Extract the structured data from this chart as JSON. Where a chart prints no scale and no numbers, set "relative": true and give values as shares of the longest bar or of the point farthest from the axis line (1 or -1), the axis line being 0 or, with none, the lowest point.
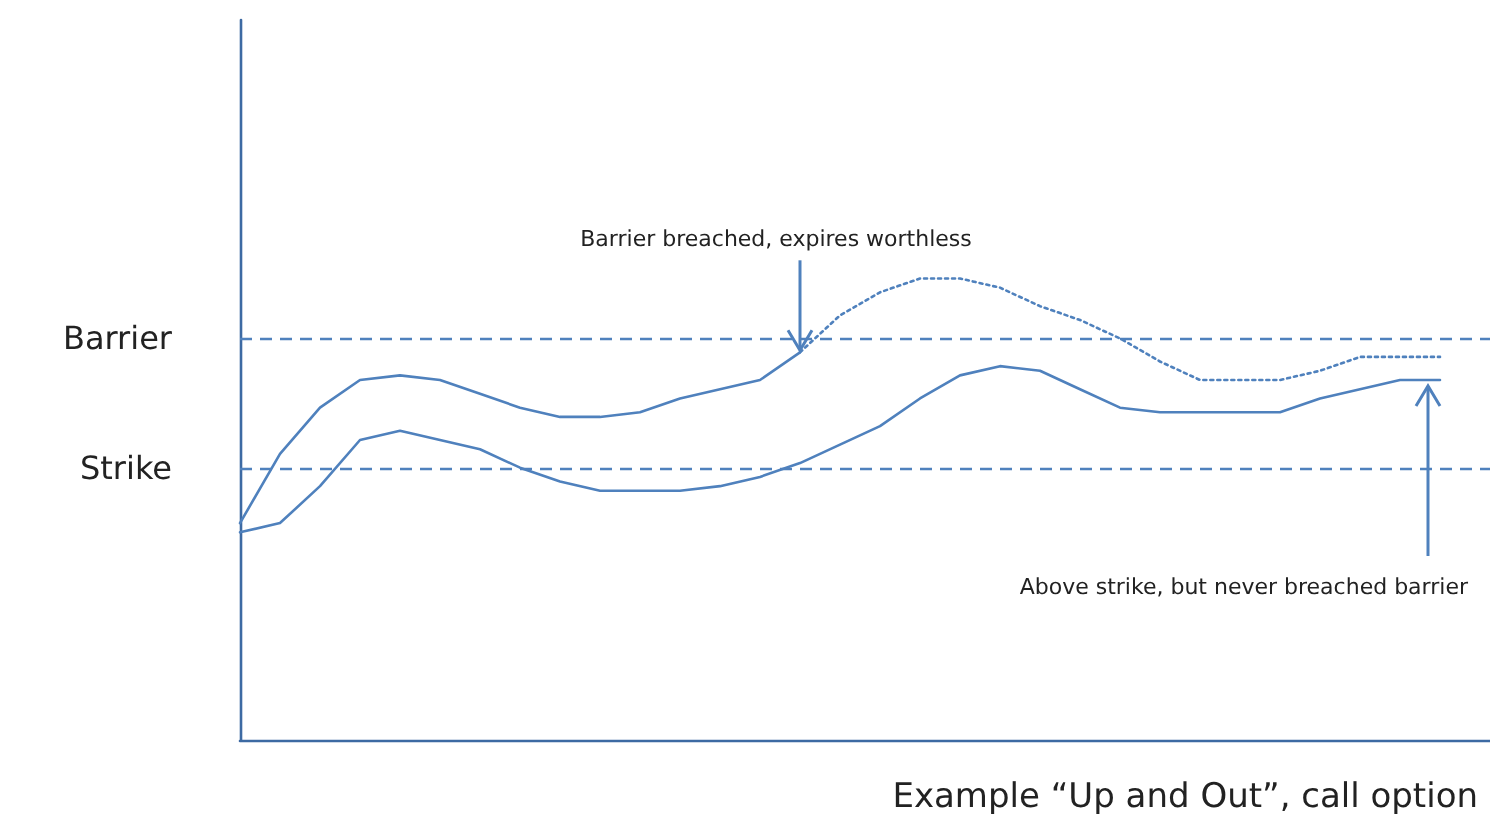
{
  "chart_data": {
    "type": "line",
    "relative": true,
    "categories": [
      null,
      null,
      null,
      null,
      null,
      null,
      null,
      null,
      null,
      null,
      null,
      null,
      null,
      null,
      null,
      null,
      null,
      null,
      null,
      null,
      null,
      null,
      null,
      null,
      null,
      null,
      null,
      null,
      null,
      null,
      null
    ],
    "series": [
      {
        "color": "#4f81bd",
        "line_style": "solid",
        "values": [
          0.47,
          0.62,
          0.72,
          0.78,
          0.79,
          0.78,
          0.75,
          0.72,
          0.7,
          0.7,
          0.71,
          0.74,
          0.76,
          0.78,
          0.84,
          null,
          null,
          null,
          null,
          null,
          null,
          null,
          null,
          null,
          null,
          null,
          null,
          null,
          null,
          null,
          null
        ]
      },
      {
        "color": "#4f81bd",
        "line_style": "dotted",
        "values": [
          null,
          null,
          null,
          null,
          null,
          null,
          null,
          null,
          null,
          null,
          null,
          null,
          null,
          null,
          0.84,
          0.92,
          0.97,
          1,
          1,
          0.98,
          0.94,
          0.91,
          0.87,
          0.82,
          0.78,
          0.78,
          0.78,
          0.8,
          0.83,
          0.83,
          0.83
        ]
      },
      {
        "color": "#4f81bd",
        "line_style": "solid",
        "values": [
          0.45,
          0.47,
          0.55,
          0.65,
          0.67,
          0.65,
          0.63,
          0.59,
          0.56,
          0.54,
          0.54,
          0.54,
          0.55,
          0.57,
          0.6,
          0.64,
          0.68,
          0.74,
          0.79,
          0.81,
          0.8,
          0.76,
          0.72,
          0.71,
          0.71,
          0.71,
          0.71,
          0.74,
          0.76,
          0.78,
          0.78
        ]
      }
    ],
    "ref_lines": [
      {
        "axis": "y",
        "value": 0.87,
        "label": "Barrier",
        "color": "#4f81bd",
        "line_style": "dashed"
      },
      {
        "axis": "y",
        "value": 0.59,
        "label": "Strike",
        "color": "#4f81bd",
        "line_style": "dashed"
      }
    ],
    "annotations": [
      "Barrier breached, expires worthless",
      "Above strike, but never breached barrier",
      "Example “Up and Out”, call option"
    ],
    "marker": "none",
    "grid": false
  }
}
